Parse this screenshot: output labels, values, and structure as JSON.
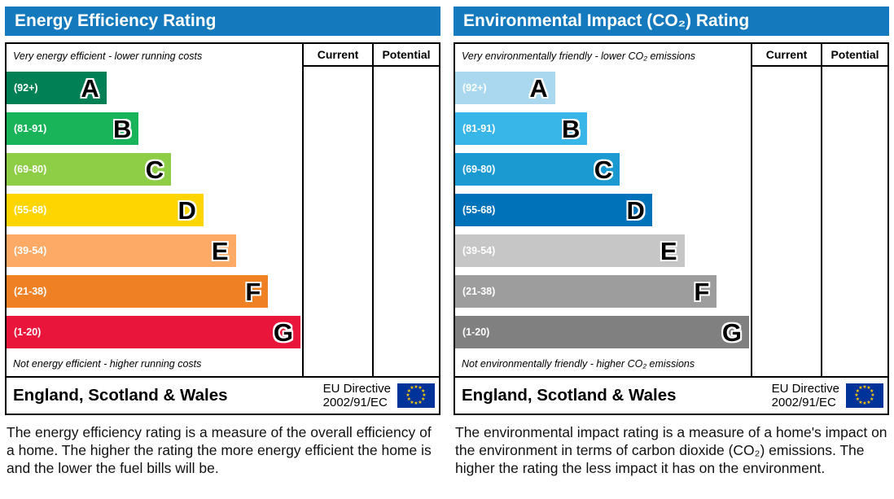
{
  "colors": {
    "header_bg": "#1479bd",
    "border": "#000000"
  },
  "flag": {
    "bg": "#003399",
    "star": "#ffcc00"
  },
  "panels": [
    {
      "title": "Energy Efficiency Rating",
      "columns": [
        "Current",
        "Potential"
      ],
      "top_caption": "Very energy efficient - lower running costs",
      "bottom_caption": "Not energy efficient - higher running costs",
      "bands": [
        {
          "letter": "A",
          "range": "(92+)",
          "color": "#008054",
          "width_pct": 34
        },
        {
          "letter": "B",
          "range": "(81-91)",
          "color": "#19b459",
          "width_pct": 45
        },
        {
          "letter": "C",
          "range": "(69-80)",
          "color": "#8dce46",
          "width_pct": 56
        },
        {
          "letter": "D",
          "range": "(55-68)",
          "color": "#ffd500",
          "width_pct": 67
        },
        {
          "letter": "E",
          "range": "(39-54)",
          "color": "#fcaa65",
          "width_pct": 78
        },
        {
          "letter": "F",
          "range": "(21-38)",
          "color": "#ef8023",
          "width_pct": 89
        },
        {
          "letter": "G",
          "range": "(1-20)",
          "color": "#e9153b",
          "width_pct": 100
        }
      ],
      "footer": {
        "region": "England, Scotland & Wales",
        "directive": [
          "EU Directive",
          "2002/91/EC"
        ]
      },
      "description": "The energy efficiency rating is a measure of the overall efficiency of a home. The higher the rating the more energy efficient the home is and the lower the fuel bills will be."
    },
    {
      "title": "Environmental Impact (CO₂) Rating",
      "columns": [
        "Current",
        "Potential"
      ],
      "top_caption": "Very environmentally friendly - lower CO₂ emissions",
      "bottom_caption": "Not environmentally friendly - higher CO₂ emissions",
      "bands": [
        {
          "letter": "A",
          "range": "(92+)",
          "color": "#a9d8ef",
          "width_pct": 34
        },
        {
          "letter": "B",
          "range": "(81-91)",
          "color": "#38b6e8",
          "width_pct": 45
        },
        {
          "letter": "C",
          "range": "(69-80)",
          "color": "#1b9ad2",
          "width_pct": 56
        },
        {
          "letter": "D",
          "range": "(55-68)",
          "color": "#0072ba",
          "width_pct": 67
        },
        {
          "letter": "E",
          "range": "(39-54)",
          "color": "#c6c6c6",
          "width_pct": 78
        },
        {
          "letter": "F",
          "range": "(21-38)",
          "color": "#9d9d9d",
          "width_pct": 89
        },
        {
          "letter": "G",
          "range": "(1-20)",
          "color": "#808080",
          "width_pct": 100
        }
      ],
      "footer": {
        "region": "England, Scotland & Wales",
        "directive": [
          "EU Directive",
          "2002/91/EC"
        ]
      },
      "description": "The environmental impact rating is a measure of a home's impact on the environment in terms of carbon dioxide (CO₂) emissions. The higher the rating the less impact it has on the environment."
    }
  ],
  "chart_data": [
    {
      "type": "bar",
      "title": "Energy Efficiency Rating",
      "orientation": "horizontal",
      "categories": [
        "A",
        "B",
        "C",
        "D",
        "E",
        "F",
        "G"
      ],
      "score_ranges": [
        "92+",
        "81-91",
        "69-80",
        "55-68",
        "39-54",
        "21-38",
        "1-20"
      ],
      "relative_bar_widths_pct": [
        34,
        45,
        56,
        67,
        78,
        89,
        100
      ],
      "bar_colors": [
        "#008054",
        "#19b459",
        "#8dce46",
        "#ffd500",
        "#fcaa65",
        "#ef8023",
        "#e9153b"
      ],
      "columns": [
        "Current",
        "Potential"
      ],
      "current_value": null,
      "potential_value": null,
      "annotations": [
        "Very energy efficient - lower running costs",
        "Not energy efficient - higher running costs"
      ],
      "footer": "England, Scotland & Wales — EU Directive 2002/91/EC"
    },
    {
      "type": "bar",
      "title": "Environmental Impact (CO₂) Rating",
      "orientation": "horizontal",
      "categories": [
        "A",
        "B",
        "C",
        "D",
        "E",
        "F",
        "G"
      ],
      "score_ranges": [
        "92+",
        "81-91",
        "69-80",
        "55-68",
        "39-54",
        "21-38",
        "1-20"
      ],
      "relative_bar_widths_pct": [
        34,
        45,
        56,
        67,
        78,
        89,
        100
      ],
      "bar_colors": [
        "#a9d8ef",
        "#38b6e8",
        "#1b9ad2",
        "#0072ba",
        "#c6c6c6",
        "#9d9d9d",
        "#808080"
      ],
      "columns": [
        "Current",
        "Potential"
      ],
      "current_value": null,
      "potential_value": null,
      "annotations": [
        "Very environmentally friendly - lower CO₂ emissions",
        "Not environmentally friendly - higher CO₂ emissions"
      ],
      "footer": "England, Scotland & Wales — EU Directive 2002/91/EC"
    }
  ]
}
